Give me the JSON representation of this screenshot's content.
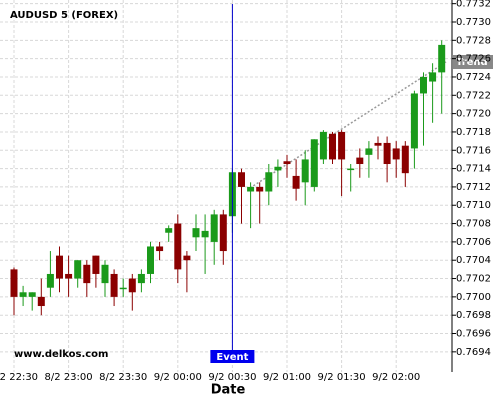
{
  "chart_data": {
    "type": "candlestick",
    "title": "AUDUSD 5 (FOREX)",
    "x_label": "Date",
    "watermark": "www.delkos.com",
    "event": {
      "label": "Event",
      "x": "9/2 00:30"
    },
    "trend_label": "Trend",
    "categories": [
      "8/2 22:30",
      null,
      null,
      null,
      null,
      null,
      "8/2 23:00",
      null,
      null,
      null,
      null,
      null,
      "8/2 23:30",
      null,
      null,
      null,
      null,
      null,
      "9/2 00:00",
      null,
      null,
      null,
      null,
      null,
      "9/2 00:30",
      null,
      null,
      null,
      null,
      null,
      "9/2 01:00",
      null,
      null,
      null,
      null,
      null,
      "9/2 01:30",
      null,
      null,
      null,
      null,
      null,
      "9/2 02:00",
      null,
      null,
      null,
      null,
      null
    ],
    "open": [
      0.7703,
      0.77,
      0.77,
      0.77,
      0.7701,
      0.77045,
      0.77025,
      0.7702,
      0.77035,
      0.77045,
      0.77015,
      0.77025,
      0.7701,
      0.7702,
      0.77015,
      0.77025,
      0.77055,
      0.7707,
      0.7708,
      0.77045,
      0.77065,
      0.77065,
      0.7706,
      0.7709,
      0.77088,
      0.77136,
      0.77115,
      0.7712,
      0.77115,
      0.77138,
      0.77148,
      0.77132,
      0.77125,
      0.7712,
      0.7715,
      0.77178,
      0.7718,
      0.7714,
      0.77152,
      0.77155,
      0.77168,
      0.77168,
      0.77162,
      0.77165,
      0.77162,
      0.77222,
      0.77235,
      0.77245
    ],
    "high": [
      0.77032,
      0.77012,
      0.77005,
      0.7702,
      0.7705,
      0.77055,
      0.77045,
      0.7704,
      0.7704,
      0.77045,
      0.7704,
      0.7703,
      0.7702,
      0.77025,
      0.7703,
      0.7706,
      0.7706,
      0.77078,
      0.7709,
      0.7705,
      0.7709,
      0.7709,
      0.77095,
      0.77095,
      0.7714,
      0.7714,
      0.77125,
      0.77125,
      0.77145,
      0.7715,
      0.77155,
      0.7715,
      0.7716,
      0.77172,
      0.77182,
      0.7718,
      0.77182,
      0.77145,
      0.77162,
      0.7717,
      0.77175,
      0.77175,
      0.7717,
      0.7717,
      0.77225,
      0.77245,
      0.77255,
      0.7728
    ],
    "low": [
      0.7698,
      0.7699,
      0.76985,
      0.7698,
      0.77,
      0.77005,
      0.77,
      0.7701,
      0.77,
      0.7701,
      0.77,
      0.7699,
      0.77,
      0.76985,
      0.77005,
      0.77015,
      0.7704,
      0.7706,
      0.77015,
      0.77005,
      0.7705,
      0.77025,
      0.77035,
      0.77035,
      0.7707,
      0.7708,
      0.77075,
      0.7708,
      0.771,
      0.7712,
      0.7713,
      0.77105,
      0.771,
      0.77115,
      0.77145,
      0.77145,
      0.7711,
      0.77115,
      0.7713,
      0.7713,
      0.7715,
      0.77125,
      0.7713,
      0.7712,
      0.7714,
      0.77165,
      0.7719,
      0.772
    ],
    "close": [
      0.77,
      0.77005,
      0.77005,
      0.7699,
      0.77025,
      0.7702,
      0.7702,
      0.7704,
      0.77015,
      0.77025,
      0.77035,
      0.77,
      0.7701,
      0.77005,
      0.77025,
      0.77055,
      0.7705,
      0.77075,
      0.7703,
      0.7704,
      0.77075,
      0.77072,
      0.7709,
      0.7705,
      0.77136,
      0.7712,
      0.7712,
      0.77115,
      0.77136,
      0.77142,
      0.77145,
      0.77118,
      0.7715,
      0.77172,
      0.7718,
      0.7715,
      0.7715,
      0.7714,
      0.77145,
      0.77162,
      0.77165,
      0.77145,
      0.7715,
      0.77135,
      0.77222,
      0.7724,
      0.77245,
      0.77275
    ],
    "up_color": "#1a9a1a",
    "down_color": "#8b0000",
    "ylim": [
      0.76918,
      0.77324
    ],
    "yticks": [
      0.7694,
      0.7696,
      0.7698,
      {
        "value": 0.77,
        "label": "0.7700"
      },
      0.7702,
      0.7704,
      0.7706,
      0.7708,
      {
        "value": 0.771,
        "label": "0.7710"
      },
      0.7712,
      0.7714,
      0.7716,
      0.7718,
      {
        "value": 0.772,
        "label": "0.7720"
      },
      0.7722,
      0.7724,
      0.7726,
      0.7728,
      {
        "value": 0.773,
        "label": "0.7730"
      },
      0.7732
    ],
    "grid": true
  }
}
